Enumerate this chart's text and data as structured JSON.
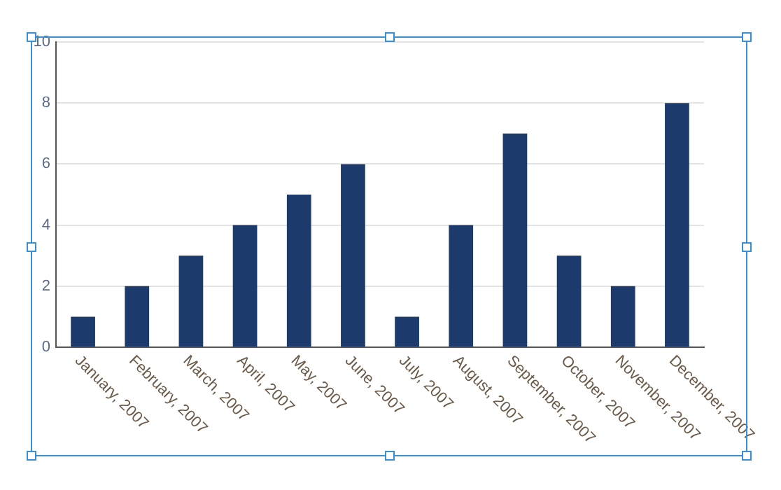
{
  "chart_data": {
    "type": "bar",
    "categories": [
      "January, 2007",
      "February, 2007",
      "March, 2007",
      "April, 2007",
      "May, 2007",
      "June, 2007",
      "July, 2007",
      "August, 2007",
      "September, 2007",
      "October, 2007",
      "November, 2007",
      "December, 2007"
    ],
    "values": [
      1,
      2,
      3,
      4,
      5,
      6,
      1,
      4,
      7,
      3,
      2,
      8
    ],
    "color": "#1c3a6b",
    "ylim": [
      0,
      10
    ],
    "yticks": [
      0,
      2,
      4,
      6,
      8,
      10
    ],
    "grid": "y",
    "legend": false
  }
}
